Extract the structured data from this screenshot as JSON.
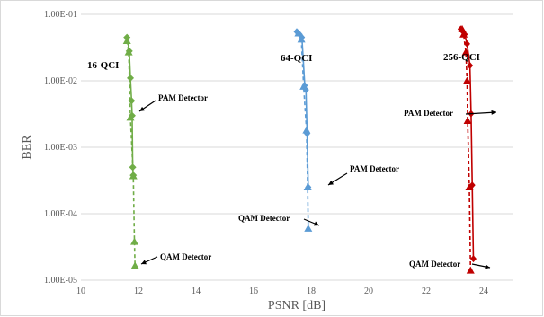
{
  "chart_data": {
    "type": "scatter",
    "xlabel": "PSNR [dB]",
    "ylabel": "BER",
    "xlim": [
      10,
      25
    ],
    "ylim": [
      1e-05,
      0.1
    ],
    "y_scale": "log",
    "x_ticks": [
      "10",
      "12",
      "14",
      "16",
      "18",
      "20",
      "22",
      "24"
    ],
    "y_ticks": [
      "1.00E-05",
      "1.00E-04",
      "1.00E-03",
      "1.00E-02",
      "1.00E-01"
    ],
    "grid": "horizontal",
    "series": [
      {
        "name": "16-QCI",
        "color": "#70ad47",
        "pam": [
          [
            11.6,
            0.045
          ],
          [
            11.68,
            0.028
          ],
          [
            11.72,
            0.011
          ],
          [
            11.76,
            0.005
          ],
          [
            11.78,
            0.003
          ],
          [
            11.8,
            0.0005
          ],
          [
            11.82,
            0.00038
          ]
        ],
        "qam": [
          [
            11.6,
            0.04
          ],
          [
            11.66,
            0.027
          ],
          [
            11.72,
            0.0028
          ],
          [
            11.82,
            0.00037
          ],
          [
            11.86,
            3.8e-05
          ],
          [
            11.88,
            1.65e-05
          ]
        ]
      },
      {
        "name": "64-QCI",
        "color": "#5b9bd5",
        "pam": [
          [
            17.5,
            0.055
          ],
          [
            17.6,
            0.05
          ],
          [
            17.68,
            0.045
          ],
          [
            17.78,
            0.0085
          ],
          [
            17.82,
            0.0073
          ],
          [
            17.86,
            0.0016
          ],
          [
            17.9,
            0.00025
          ]
        ],
        "qam": [
          [
            17.56,
            0.052
          ],
          [
            17.66,
            0.042
          ],
          [
            17.74,
            0.0082
          ],
          [
            17.84,
            0.0018
          ],
          [
            17.88,
            0.00025
          ],
          [
            17.9,
            6e-05
          ]
        ]
      },
      {
        "name": "256-QCI",
        "color": "#c00000",
        "pam": [
          [
            23.2,
            0.06
          ],
          [
            23.28,
            0.055
          ],
          [
            23.34,
            0.05
          ],
          [
            23.42,
            0.036
          ],
          [
            23.52,
            0.017
          ],
          [
            23.56,
            0.0032
          ],
          [
            23.6,
            0.00027
          ],
          [
            23.64,
            2.1e-05
          ]
        ],
        "qam": [
          [
            23.25,
            0.06
          ],
          [
            23.3,
            0.05
          ],
          [
            23.38,
            0.027
          ],
          [
            23.42,
            0.01
          ],
          [
            23.44,
            0.0025
          ],
          [
            23.5,
            0.00025
          ],
          [
            23.54,
            1.4e-05
          ]
        ]
      }
    ],
    "series_labels": [
      "16-QCI",
      "64-QCI",
      "256-QCI"
    ],
    "annotations": [
      "PAM Detector",
      "QAM Detector",
      "PAM Detector",
      "QAM Detector",
      "PAM Detector",
      "QAM Detector"
    ]
  }
}
